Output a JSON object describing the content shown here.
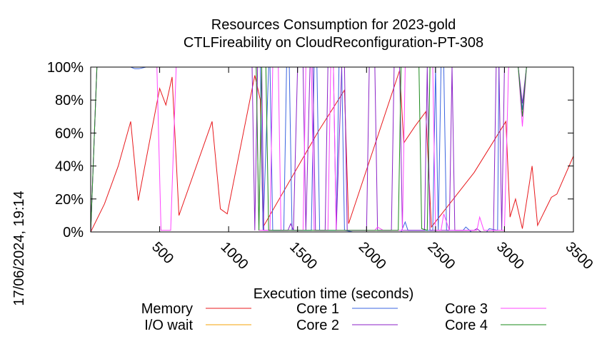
{
  "chart_data": {
    "type": "line",
    "title": "Resources Consumption for 2023-gold",
    "subtitle": "CTLFireability on CloudReconfiguration-PT-308",
    "xlabel": "Execution time (seconds)",
    "ylabel": "",
    "side_label": "17/06/2024, 19:14",
    "xlim": [
      0,
      3500
    ],
    "ylim": [
      0,
      100
    ],
    "x_ticks": [
      500,
      1000,
      1500,
      2000,
      2500,
      3000,
      3500
    ],
    "y_ticks": [
      0,
      20,
      40,
      60,
      80,
      100
    ],
    "y_tick_labels": [
      "0%",
      "20%",
      "40%",
      "60%",
      "80%",
      "100%"
    ],
    "grid": false,
    "legend_position": "bottom",
    "series": [
      {
        "name": "Memory",
        "color": "#e8191d",
        "points": [
          [
            0,
            0
          ],
          [
            100,
            17
          ],
          [
            200,
            40
          ],
          [
            290,
            67
          ],
          [
            345,
            19
          ],
          [
            500,
            87
          ],
          [
            545,
            77
          ],
          [
            590,
            94
          ],
          [
            640,
            10
          ],
          [
            880,
            67
          ],
          [
            940,
            14
          ],
          [
            990,
            11
          ],
          [
            1190,
            95
          ],
          [
            1230,
            80
          ],
          [
            1250,
            3
          ],
          [
            1650,
            61
          ],
          [
            1840,
            86
          ],
          [
            1870,
            5
          ],
          [
            2240,
            98
          ],
          [
            2270,
            54
          ],
          [
            2350,
            64
          ],
          [
            2430,
            73
          ],
          [
            2470,
            3
          ],
          [
            2780,
            36
          ],
          [
            3010,
            67
          ],
          [
            3040,
            9
          ],
          [
            3080,
            20
          ],
          [
            3130,
            2
          ],
          [
            3200,
            40
          ],
          [
            3240,
            4
          ],
          [
            3340,
            21
          ],
          [
            3380,
            23
          ],
          [
            3500,
            46
          ]
        ]
      },
      {
        "name": "I/O wait",
        "color": "#f5a30a",
        "points": [
          [
            0,
            0
          ],
          [
            3500,
            0
          ]
        ]
      },
      {
        "name": "Core 1",
        "color": "#3b64e0",
        "points": [
          [
            0,
            0
          ],
          [
            45,
            100
          ],
          [
            290,
            100
          ],
          [
            320,
            99
          ],
          [
            350,
            99
          ],
          [
            400,
            100
          ],
          [
            1230,
            100
          ],
          [
            1250,
            1
          ],
          [
            1290,
            100
          ],
          [
            1300,
            100
          ],
          [
            1320,
            1
          ],
          [
            1400,
            1
          ],
          [
            1420,
            100
          ],
          [
            1440,
            100
          ],
          [
            1460,
            1
          ],
          [
            1600,
            1
          ],
          [
            1620,
            100
          ],
          [
            1640,
            100
          ],
          [
            1660,
            1
          ],
          [
            1780,
            1
          ],
          [
            1800,
            100
          ],
          [
            1820,
            100
          ],
          [
            1840,
            1
          ],
          [
            1900,
            0
          ],
          [
            2250,
            0
          ],
          [
            2280,
            6
          ],
          [
            2300,
            1
          ],
          [
            2480,
            1
          ],
          [
            2500,
            100
          ],
          [
            2520,
            1
          ],
          [
            2540,
            100
          ],
          [
            2560,
            100
          ],
          [
            2580,
            1
          ],
          [
            2700,
            1
          ],
          [
            2720,
            3
          ],
          [
            2760,
            0
          ],
          [
            2870,
            0
          ],
          [
            2890,
            2
          ],
          [
            2950,
            1
          ],
          [
            2960,
            100
          ],
          [
            3050,
            100
          ],
          [
            3100,
            100
          ],
          [
            3130,
            74
          ],
          [
            3160,
            100
          ],
          [
            3500,
            100
          ]
        ]
      },
      {
        "name": "Core 2",
        "color": "#8b22c7",
        "points": [
          [
            0,
            0
          ],
          [
            45,
            100
          ],
          [
            1170,
            100
          ],
          [
            1190,
            1
          ],
          [
            1210,
            100
          ],
          [
            1240,
            100
          ],
          [
            1255,
            1
          ],
          [
            1430,
            1
          ],
          [
            1450,
            5
          ],
          [
            1470,
            1
          ],
          [
            1500,
            100
          ],
          [
            1540,
            100
          ],
          [
            1560,
            1
          ],
          [
            1590,
            100
          ],
          [
            1610,
            100
          ],
          [
            1630,
            1
          ],
          [
            1700,
            1
          ],
          [
            1720,
            100
          ],
          [
            1760,
            100
          ],
          [
            1780,
            1
          ],
          [
            1820,
            100
          ],
          [
            1840,
            100
          ],
          [
            1860,
            1
          ],
          [
            2000,
            1
          ],
          [
            2020,
            100
          ],
          [
            2060,
            100
          ],
          [
            2080,
            1
          ],
          [
            2180,
            1
          ],
          [
            2200,
            100
          ],
          [
            2240,
            100
          ],
          [
            2260,
            1
          ],
          [
            2420,
            1
          ],
          [
            2440,
            100
          ],
          [
            2460,
            1
          ],
          [
            2600,
            1
          ],
          [
            2620,
            100
          ],
          [
            2640,
            1
          ],
          [
            2780,
            1
          ],
          [
            2800,
            2
          ],
          [
            2830,
            0
          ],
          [
            2920,
            0
          ],
          [
            2940,
            100
          ],
          [
            2960,
            100
          ],
          [
            2980,
            1
          ],
          [
            3000,
            100
          ],
          [
            3100,
            100
          ],
          [
            3130,
            78
          ],
          [
            3160,
            100
          ],
          [
            3500,
            100
          ]
        ]
      },
      {
        "name": "Core 3",
        "color": "#ff44ff",
        "points": [
          [
            0,
            0
          ],
          [
            45,
            100
          ],
          [
            480,
            100
          ],
          [
            510,
            1
          ],
          [
            580,
            1
          ],
          [
            620,
            100
          ],
          [
            1200,
            100
          ],
          [
            1220,
            1
          ],
          [
            1300,
            1
          ],
          [
            1320,
            100
          ],
          [
            1360,
            100
          ],
          [
            1380,
            1
          ],
          [
            1540,
            1
          ],
          [
            1560,
            100
          ],
          [
            1600,
            100
          ],
          [
            1620,
            1
          ],
          [
            1720,
            1
          ],
          [
            1740,
            100
          ],
          [
            1760,
            100
          ],
          [
            1780,
            1
          ],
          [
            2060,
            1
          ],
          [
            2080,
            3
          ],
          [
            2120,
            1
          ],
          [
            2260,
            1
          ],
          [
            2280,
            100
          ],
          [
            2480,
            100
          ],
          [
            2500,
            1
          ],
          [
            2540,
            1
          ],
          [
            2560,
            11
          ],
          [
            2600,
            1
          ],
          [
            2800,
            1
          ],
          [
            2820,
            9
          ],
          [
            2850,
            1
          ],
          [
            3000,
            1
          ],
          [
            3030,
            100
          ],
          [
            3100,
            100
          ],
          [
            3130,
            64
          ],
          [
            3160,
            100
          ],
          [
            3500,
            100
          ]
        ]
      },
      {
        "name": "Core 4",
        "color": "#1a8a1a",
        "points": [
          [
            0,
            0
          ],
          [
            45,
            100
          ],
          [
            1200,
            100
          ],
          [
            1220,
            1
          ],
          [
            1240,
            100
          ],
          [
            1270,
            100
          ],
          [
            1290,
            1
          ],
          [
            2230,
            1
          ],
          [
            2250,
            100
          ],
          [
            2380,
            100
          ],
          [
            2400,
            2
          ],
          [
            2440,
            1
          ],
          [
            2460,
            100
          ],
          [
            3100,
            100
          ],
          [
            3130,
            70
          ],
          [
            3160,
            100
          ],
          [
            3500,
            100
          ]
        ]
      }
    ]
  }
}
